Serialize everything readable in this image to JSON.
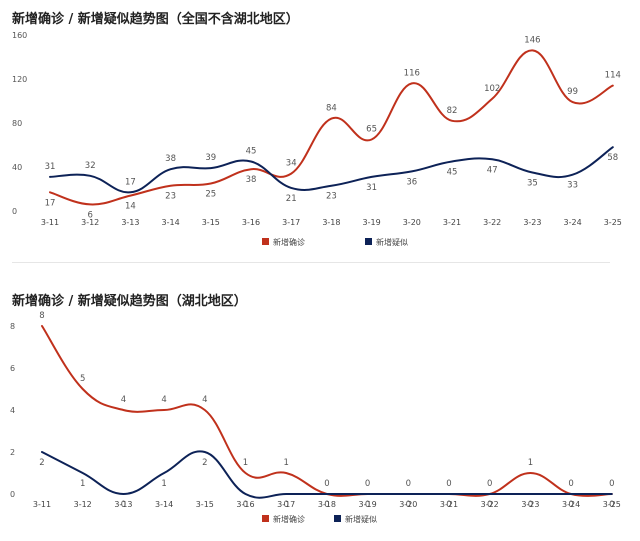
{
  "charts": [
    {
      "id": "national",
      "title": "新增确诊 / 新增疑似趋势图（全国不含湖北地区）"
    },
    {
      "id": "hubei",
      "title": "新增确诊 / 新增疑似趋势图（湖北地区）"
    }
  ],
  "chart_data": [
    {
      "type": "line",
      "title": "新增确诊 / 新增疑似趋势图（全国不含湖北地区）",
      "categories": [
        "3-11",
        "3-12",
        "3-13",
        "3-14",
        "3-15",
        "3-16",
        "3-17",
        "3-18",
        "3-19",
        "3-20",
        "3-21",
        "3-22",
        "3-23",
        "3-24",
        "3-25"
      ],
      "ylim": [
        0,
        160
      ],
      "yticks": [
        "0",
        "40",
        "80",
        "120",
        "160"
      ],
      "legend_position": "bottom-center",
      "grid": false,
      "series": [
        {
          "name": "新增确诊",
          "color": "#c0311c",
          "values": [
            17,
            6,
            14,
            23,
            25,
            38,
            34,
            84,
            65,
            116,
            82,
            102,
            146,
            99,
            114
          ]
        },
        {
          "name": "新增疑似",
          "color": "#0d2257",
          "values": [
            31,
            32,
            17,
            38,
            39,
            45,
            21,
            23,
            31,
            36,
            45,
            47,
            35,
            33,
            58
          ]
        }
      ]
    },
    {
      "type": "line",
      "title": "新增确诊 / 新增疑似趋势图（湖北地区）",
      "categories": [
        "3-11",
        "3-12",
        "3-13",
        "3-14",
        "3-15",
        "3-16",
        "3-17",
        "3-18",
        "3-19",
        "3-20",
        "3-21",
        "3-22",
        "3-23",
        "3-24",
        "3-25"
      ],
      "ylim": [
        0,
        8
      ],
      "yticks": [
        "0",
        "2",
        "4",
        "6",
        "8"
      ],
      "legend_position": "bottom-center",
      "grid": false,
      "series": [
        {
          "name": "新增确诊",
          "color": "#c0311c",
          "values": [
            8,
            5,
            4,
            4,
            4,
            1,
            1,
            0,
            0,
            0,
            0,
            0,
            1,
            0,
            0
          ]
        },
        {
          "name": "新增疑似",
          "color": "#0d2257",
          "values": [
            2,
            1,
            0,
            1,
            2,
            0,
            0,
            0,
            0,
            0,
            0,
            0,
            0,
            0,
            0
          ]
        }
      ]
    }
  ]
}
